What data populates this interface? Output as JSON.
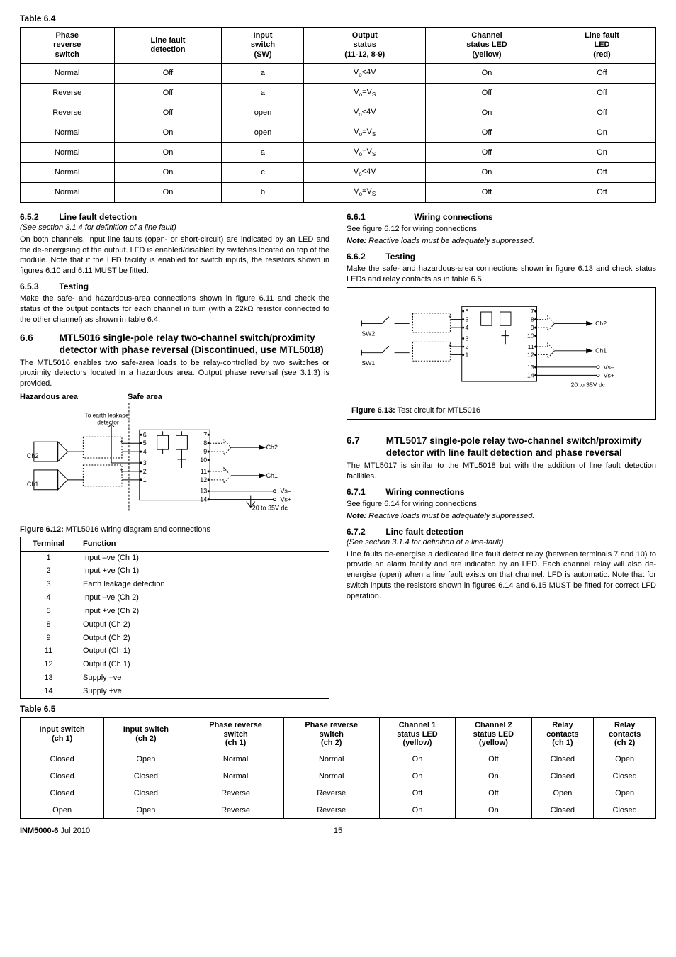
{
  "table64": {
    "caption": "Table 6.4",
    "headers": [
      "Phase\nreverse\nswitch",
      "Line fault\ndetection",
      "Input\nswitch\n(SW)",
      "Output\nstatus\n(11-12, 8-9)",
      "Channel\nstatus LED\n(yellow)",
      "Line fault\nLED\n(red)"
    ],
    "rows": [
      [
        "Normal",
        "Off",
        "a",
        "V_o<4V",
        "On",
        "Off"
      ],
      [
        "Reverse",
        "Off",
        "a",
        "V_o=V_S",
        "Off",
        "Off"
      ],
      [
        "Reverse",
        "Off",
        "open",
        "V_o<4V",
        "On",
        "Off"
      ],
      [
        "Normal",
        "On",
        "open",
        "V_o=V_S",
        "Off",
        "On"
      ],
      [
        "Normal",
        "On",
        "a",
        "V_o=V_S",
        "Off",
        "On"
      ],
      [
        "Normal",
        "On",
        "c",
        "V_o<4V",
        "On",
        "Off"
      ],
      [
        "Normal",
        "On",
        "b",
        "V_o=V_S",
        "Off",
        "Off"
      ]
    ]
  },
  "left": {
    "s652_num": "6.5.2",
    "s652_title": "Line fault detection",
    "s652_sub": "(See section 3.1.4 for definition of a line fault)",
    "s652_p": "On both channels, input line faults (open- or short-circuit) are indicated by an LED and the de-energising of the output. LFD is enabled/disabled by switches located on top of the module. Note that if the LFD facility is enabled for switch inputs, the resistors shown in figures 6.10 and 6.11 MUST be fitted.",
    "s653_num": "6.5.3",
    "s653_title": "Testing",
    "s653_p": "Make the safe- and hazardous-area connections shown in figure 6.11 and check the status of the output contacts for each channel in turn (with a 22kΩ resistor connected to the other channel) as shown in table 6.4.",
    "s66_num": "6.6",
    "s66_title": "MTL5016 single-pole relay two-channel switch/proximity detector with phase reversal (Discontinued, use MTL5018)",
    "s66_p": "The MTL5016 enables two safe-area loads to be relay-controlled by two switches or proximity detectors located in a hazardous area. Output phase reversal (see 3.1.3) is provided.",
    "haz_label": "Hazardous area",
    "safe_label": "Safe area",
    "earth_label": "To earth leakage\ndetector",
    "fig612_cap_b": "Figure 6.12:",
    "fig612_cap": " MTL5016 wiring diagram and connections",
    "term_headers": [
      "Terminal",
      "Function"
    ],
    "term_rows": [
      [
        "1",
        "Input –ve (Ch 1)"
      ],
      [
        "2",
        "Input +ve (Ch 1)"
      ],
      [
        "3",
        "Earth leakage detection"
      ],
      [
        "4",
        "Input –ve (Ch 2)"
      ],
      [
        "5",
        "Input +ve (Ch 2)"
      ],
      [
        "8",
        "Output (Ch 2)"
      ],
      [
        "9",
        "Output (Ch 2)"
      ],
      [
        "11",
        "Output (Ch 1)"
      ],
      [
        "12",
        "Output (Ch 1)"
      ],
      [
        "13",
        "Supply –ve"
      ],
      [
        "14",
        "Supply +ve"
      ]
    ]
  },
  "right": {
    "s661_num": "6.6.1",
    "s661_title": "Wiring connections",
    "s661_p": "See figure 6.12 for wiring connections.",
    "note_b": "Note:",
    "note_t": " Reactive loads must be adequately suppressed.",
    "s662_num": "6.6.2",
    "s662_title": "Testing",
    "s662_p": "Make the safe- and hazardous-area connections shown in figure 6.13 and check status LEDs and relay contacts as in table 6.5.",
    "fig613_cap_b": "Figure 6.13:",
    "fig613_cap": " Test circuit for MTL5016",
    "s67_num": "6.7",
    "s67_title": "MTL5017 single-pole relay two-channel switch/proximity detector with line fault detection and phase reversal",
    "s67_p": "The MTL5017 is similar to the MTL5018 but with the addition of line fault detection facilities.",
    "s671_num": "6.7.1",
    "s671_title": "Wiring connections",
    "s671_p": "See figure 6.14 for wiring connections.",
    "note2_b": "Note:",
    "note2_t": " Reactive loads must be adequately suppressed.",
    "s672_num": "6.7.2",
    "s672_title": "Line fault detection",
    "s672_sub": "(See section 3.1.4 for definition of a line-fault)",
    "s672_p": "Line faults de-energise a dedicated line fault detect relay (between terminals 7 and 10) to provide an alarm facility and are indicated by an LED. Each channel relay will also de-energise (open) when a line fault exists on that channel. LFD is automatic. Note that for switch inputs the resistors shown in figures 6.14 and 6.15 MUST be fitted for correct LFD operation."
  },
  "table65": {
    "caption": "Table 6.5",
    "headers": [
      "Input switch\n(ch 1)",
      "Input switch\n(ch 2)",
      "Phase reverse\nswitch\n(ch 1)",
      "Phase reverse\nswitch\n(ch 2)",
      "Channel 1\nstatus LED\n(yellow)",
      "Channel 2\nstatus LED\n(yellow)",
      "Relay\ncontacts\n(ch 1)",
      "Relay\ncontacts\n(ch 2)"
    ],
    "rows": [
      [
        "Closed",
        "Open",
        "Normal",
        "Normal",
        "On",
        "Off",
        "Closed",
        "Open"
      ],
      [
        "Closed",
        "Closed",
        "Normal",
        "Normal",
        "On",
        "On",
        "Closed",
        "Closed"
      ],
      [
        "Closed",
        "Closed",
        "Reverse",
        "Reverse",
        "Off",
        "Off",
        "Open",
        "Open"
      ],
      [
        "Open",
        "Open",
        "Reverse",
        "Reverse",
        "On",
        "On",
        "Closed",
        "Closed"
      ]
    ]
  },
  "footer": {
    "doc": "INM5000-6",
    "date": "  Jul 2010",
    "page": "15"
  },
  "diagram612": {
    "nodes": [
      "1",
      "2",
      "3",
      "4",
      "5",
      "6",
      "7",
      "8",
      "9",
      "10",
      "11",
      "12",
      "13",
      "14"
    ],
    "ch1": "Ch1",
    "ch2": "Ch2",
    "vs_minus": "Vs–",
    "vs_plus": "Vs+",
    "volt": "20 to 35V dc"
  },
  "diagram613": {
    "sw1": "SW1",
    "sw2": "SW2",
    "ch1": "Ch1",
    "ch2": "Ch2",
    "vs_minus": "Vs–",
    "vs_plus": "Vs+",
    "volt": "20 to 35V dc",
    "pins": [
      "1",
      "2",
      "3",
      "4",
      "5",
      "6",
      "7",
      "8",
      "9",
      "10",
      "11",
      "12",
      "13",
      "14"
    ]
  },
  "colors": {
    "line": "#000000",
    "bg": "#ffffff"
  }
}
